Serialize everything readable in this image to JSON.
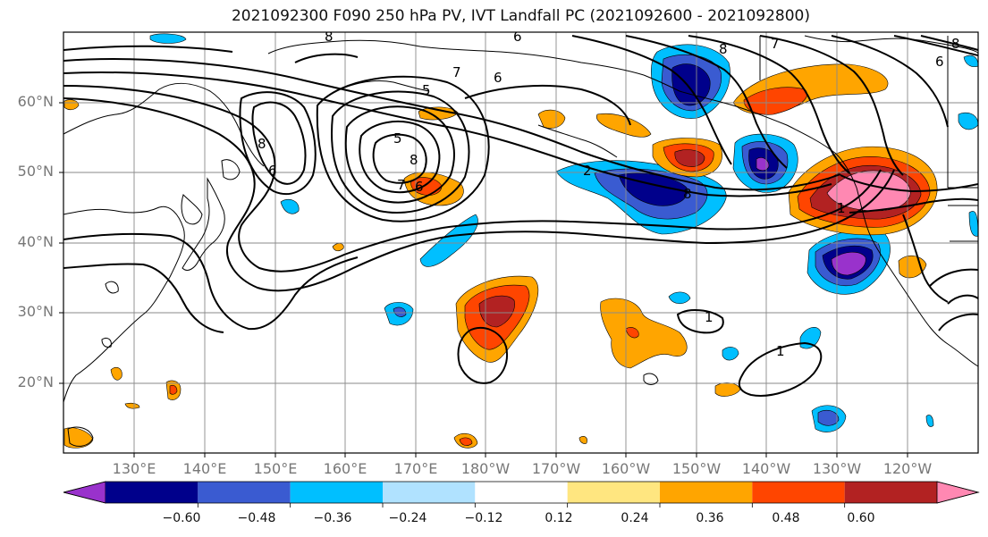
{
  "title": "2021092300 F090 250 hPa PV, IVT Landfall PC (2021092600 - 2021092800)",
  "lat_labels": [
    "60°N",
    "50°N",
    "40°N",
    "30°N",
    "20°N"
  ],
  "lon_labels": [
    "130°E",
    "140°E",
    "150°E",
    "160°E",
    "170°E",
    "180°W",
    "170°W",
    "160°W",
    "150°W",
    "140°W",
    "130°W",
    "120°W"
  ],
  "contour_labels": [
    "8",
    "7",
    "6",
    "5",
    "8",
    "6",
    "5",
    "8",
    "7",
    "6",
    "8",
    "7",
    "6",
    "2",
    "8",
    "1",
    "1",
    "1",
    "8",
    "6"
  ],
  "colorbar": {
    "ticks": [
      "−0.60",
      "−0.48",
      "−0.36",
      "−0.24",
      "−0.12",
      "0.12",
      "0.24",
      "0.36",
      "0.48",
      "0.60"
    ],
    "colors": [
      "#9932CC",
      "#00008B",
      "#3A5BD1",
      "#00BFFF",
      "#B0E2FF",
      "#FFFFFF",
      "#FFE680",
      "#FFA500",
      "#FF4500",
      "#B22222",
      "#FF88B2"
    ]
  },
  "colors": {
    "grid": "#8a8a8a",
    "coast": "#000000",
    "label_gray": "#777777"
  }
}
